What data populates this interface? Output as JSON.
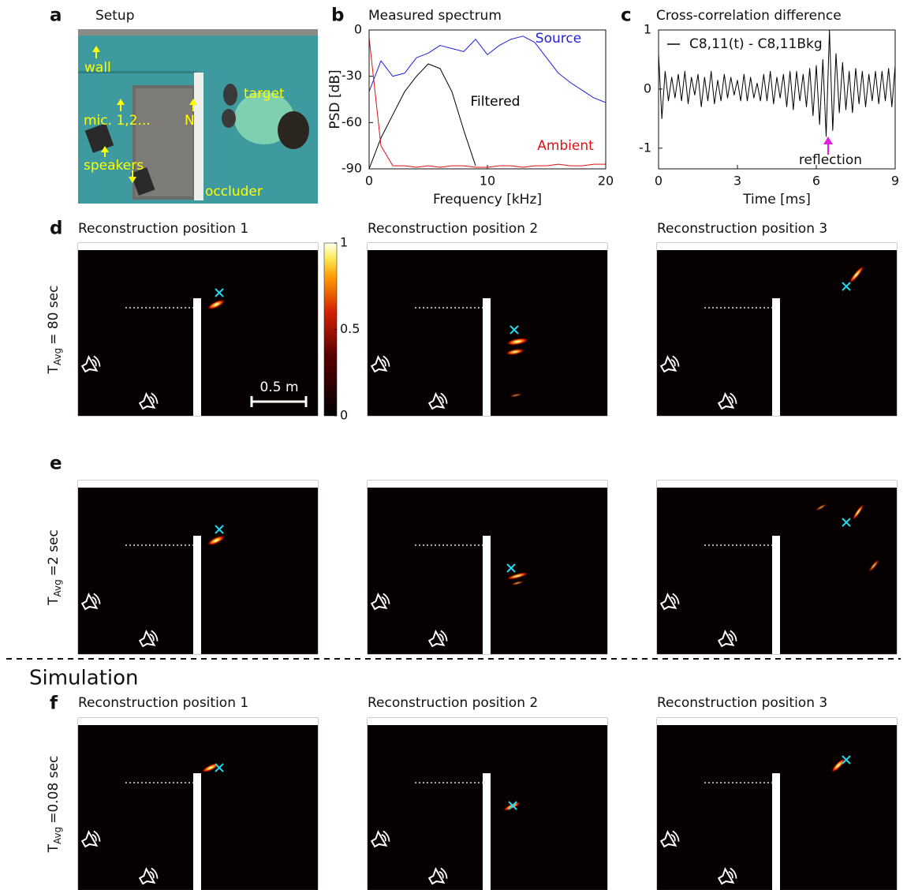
{
  "panel_a": {
    "label": "a",
    "title": "Setup",
    "annotations": [
      "wall",
      "mic. 1,2...",
      "N",
      "target",
      "speakers",
      "occluder"
    ]
  },
  "chart_data": [
    {
      "type": "line",
      "label": "b",
      "title": "Measured spectrum",
      "xlabel": "Frequency [kHz]",
      "ylabel": "PSD [dB]",
      "x": [
        0,
        1,
        2,
        3,
        4,
        5,
        6,
        7,
        8,
        9,
        10,
        11,
        12,
        13,
        14,
        15,
        16,
        17,
        18,
        19,
        20
      ],
      "series": [
        {
          "name": "Source",
          "color": "#1f1fe0",
          "values": [
            -40,
            -20,
            -30,
            -28,
            -18,
            -15,
            -10,
            -12,
            -14,
            -6,
            -16,
            -10,
            -6,
            -4,
            -8,
            -18,
            -28,
            -34,
            -39,
            -44,
            -47
          ]
        },
        {
          "name": "Filtered",
          "color": "#000000",
          "values": [
            -90,
            -70,
            -55,
            -40,
            -30,
            -22,
            -25,
            -40,
            -65,
            -88,
            null,
            null,
            null,
            null,
            null,
            null,
            null,
            null,
            null,
            null,
            null
          ]
        },
        {
          "name": "Ambient",
          "color": "#e01010",
          "values": [
            -5,
            -75,
            -88,
            -88,
            -89,
            -88,
            -89,
            -88,
            -88,
            -89,
            -89,
            -88,
            -88,
            -89,
            -88,
            -88,
            -87,
            -88,
            -88,
            -87,
            -87
          ]
        }
      ],
      "xlim": [
        0,
        20
      ],
      "ylim": [
        -90,
        0
      ],
      "xticks": [
        0,
        10,
        20
      ],
      "yticks": [
        -90,
        -60,
        -30,
        0
      ]
    },
    {
      "type": "line",
      "label": "c",
      "title": "Cross-correlation difference",
      "xlabel": "Time [ms]",
      "annotation": "reflection",
      "x": [
        0,
        0.125,
        0.25,
        0.375,
        0.5,
        0.625,
        0.75,
        0.875,
        1,
        1.125,
        1.25,
        1.375,
        1.5,
        1.625,
        1.75,
        1.875,
        2,
        2.125,
        2.25,
        2.375,
        2.5,
        2.625,
        2.75,
        2.875,
        3,
        3.125,
        3.25,
        3.375,
        3.5,
        3.625,
        3.75,
        3.875,
        4,
        4.125,
        4.25,
        4.375,
        4.5,
        4.625,
        4.75,
        4.875,
        5,
        5.125,
        5.25,
        5.375,
        5.5,
        5.625,
        5.75,
        5.875,
        6,
        6.125,
        6.25,
        6.375,
        6.5,
        6.625,
        6.75,
        6.875,
        7,
        7.125,
        7.25,
        7.375,
        7.5,
        7.625,
        7.75,
        7.875,
        8,
        8.125,
        8.25,
        8.375,
        8.5,
        8.625,
        8.75,
        8.875,
        9
      ],
      "series": [
        {
          "name": "C8,11(t) - C8,11Bkg",
          "color": "#000000",
          "values": [
            0.6,
            -0.5,
            0.3,
            -0.2,
            0.2,
            -0.15,
            0.25,
            -0.2,
            0.3,
            -0.25,
            0.2,
            -0.1,
            0.25,
            -0.3,
            0.2,
            -0.2,
            0.3,
            -0.25,
            0.15,
            -0.2,
            0.25,
            -0.15,
            0.2,
            -0.1,
            0.15,
            -0.2,
            0.25,
            -0.2,
            0.2,
            -0.15,
            0.1,
            -0.2,
            0.25,
            -0.2,
            0.3,
            -0.25,
            0.2,
            -0.15,
            0.25,
            -0.3,
            0.3,
            -0.35,
            0.3,
            -0.2,
            0.25,
            -0.3,
            0.35,
            -0.45,
            0.4,
            -0.6,
            0.5,
            -0.8,
            1.0,
            -0.7,
            0.6,
            -0.4,
            0.45,
            -0.35,
            0.3,
            -0.4,
            0.35,
            -0.25,
            0.3,
            -0.3,
            0.25,
            -0.2,
            0.3,
            -0.25,
            0.3,
            -0.2,
            0.35,
            -0.3,
            0.4
          ]
        }
      ],
      "xlim": [
        0,
        9
      ],
      "ylim": [
        -1.35,
        1
      ],
      "xticks": [
        0,
        3,
        6,
        9
      ],
      "yticks": [
        -1,
        0,
        1
      ]
    }
  ],
  "reconstruction": {
    "colorbar": {
      "ylim": [
        0,
        1
      ],
      "yticks": [
        0,
        0.5,
        1
      ]
    },
    "scale_bar": "0.5 m",
    "simulation_heading": "Simulation",
    "rows": [
      {
        "label": "d",
        "titles": [
          "Reconstruction position 1",
          "Reconstruction position 2",
          "Reconstruction position 3"
        ],
        "t": "T",
        "sub": "Avg",
        "value": "= 80 sec"
      },
      {
        "label": "e",
        "t": "T",
        "sub": "Avg",
        "value": "=2 sec"
      },
      {
        "label": "f",
        "titles": [
          "Reconstruction position 1",
          "Reconstruction position 2",
          "Reconstruction position 3"
        ],
        "t": "T",
        "sub": "Avg",
        "value": "=0.08 sec"
      }
    ]
  }
}
